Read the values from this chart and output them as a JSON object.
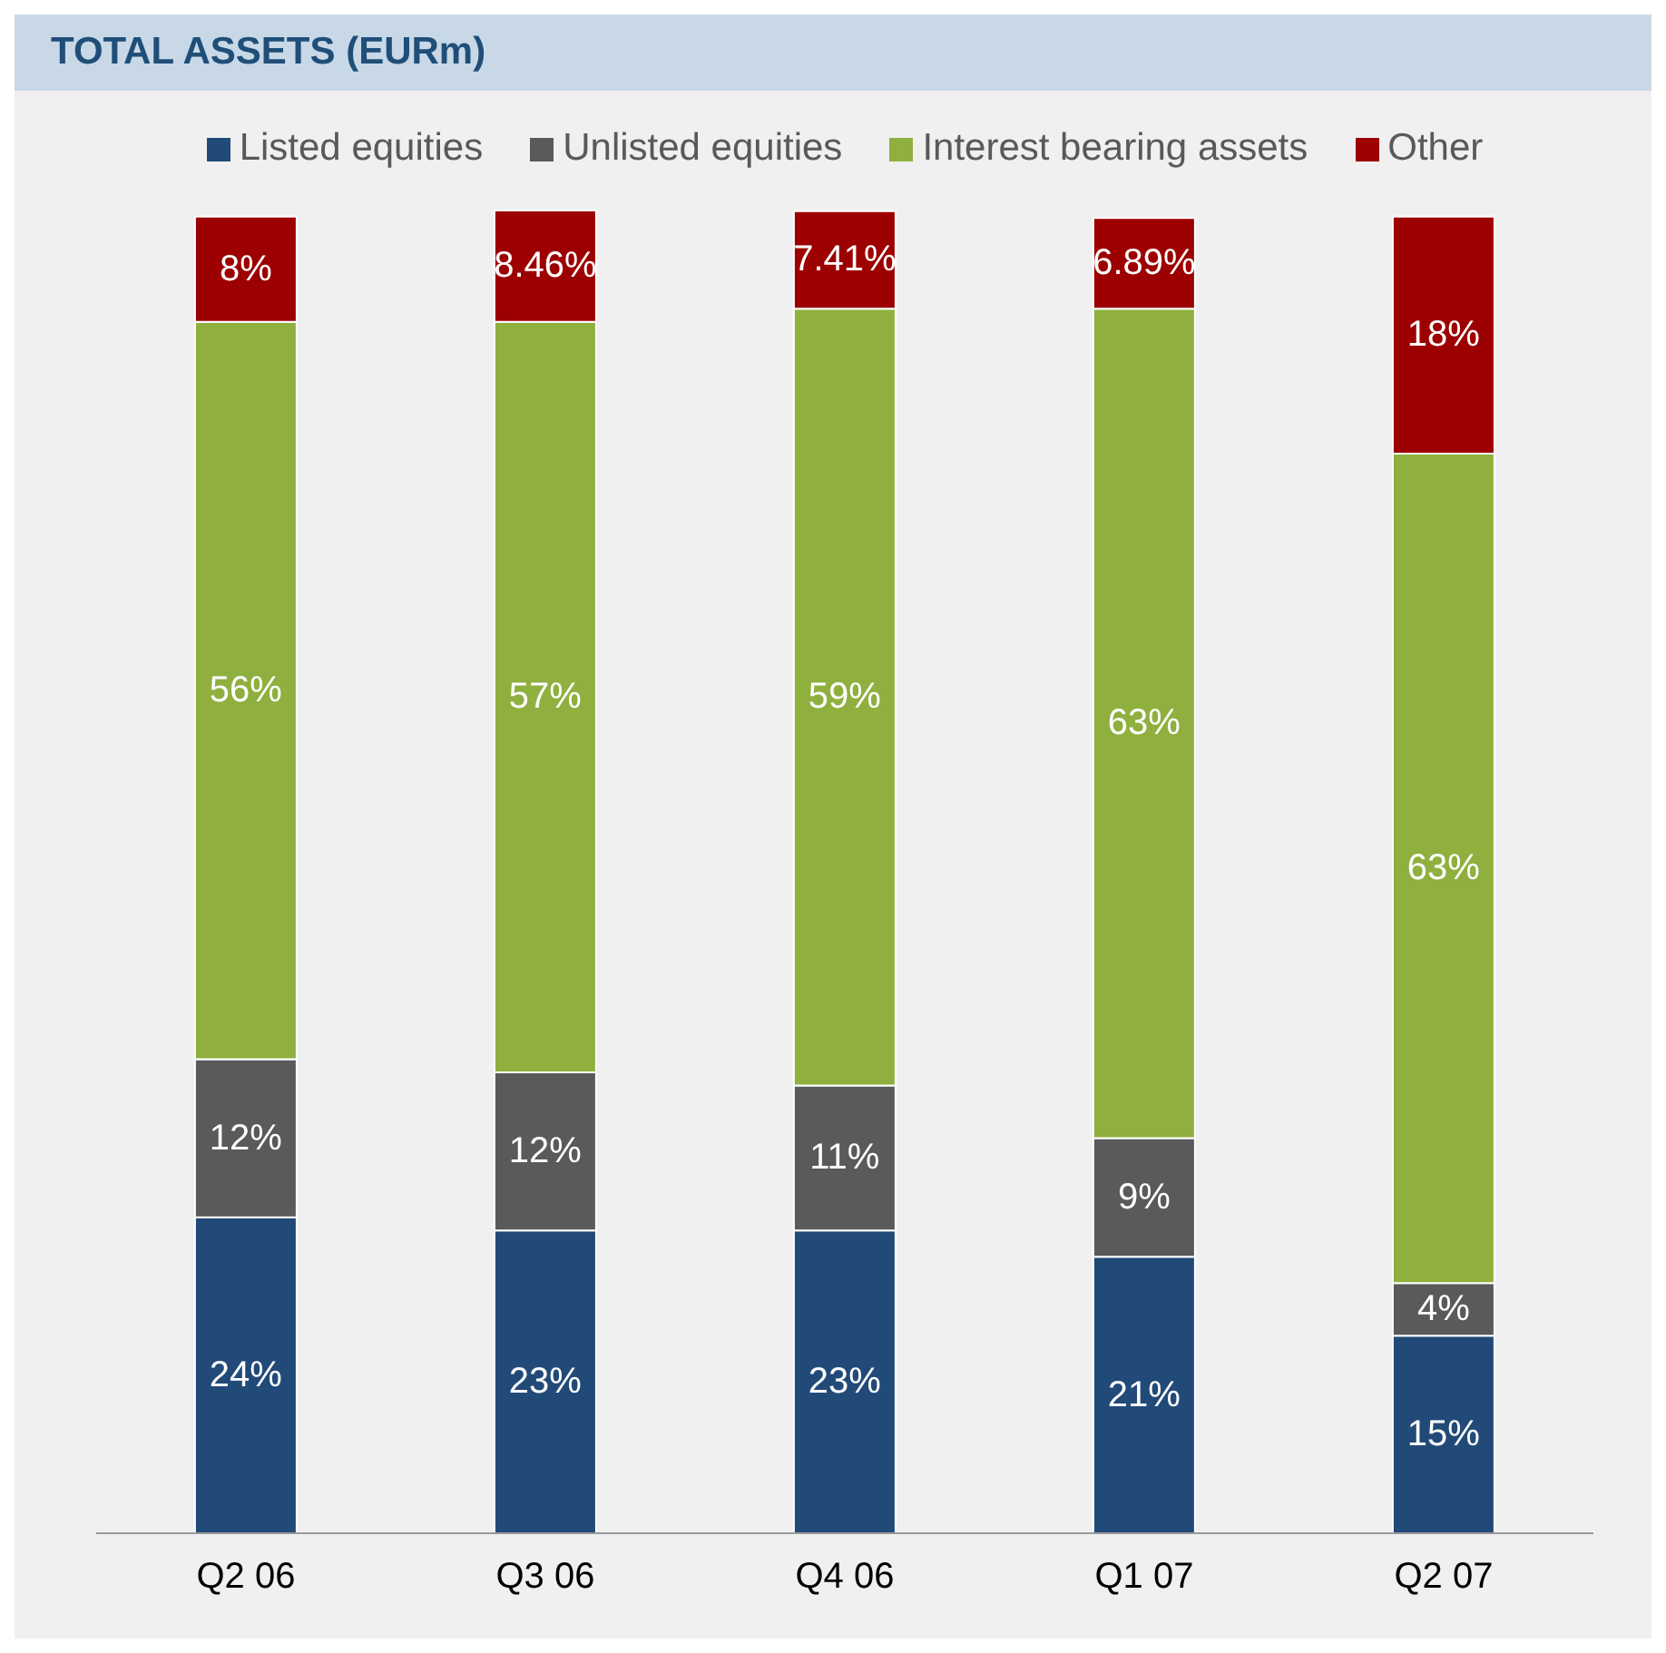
{
  "chart_data": {
    "type": "bar",
    "title": "TOTAL ASSETS (EURm)",
    "stacked": true,
    "legend": "top",
    "data_labels": true,
    "categories": [
      "Q2 06",
      "Q3 06",
      "Q4 06",
      "Q1 07",
      "Q2 07"
    ],
    "series": [
      {
        "name": "Listed equities",
        "color": "#224a78",
        "values": [
          24,
          23,
          23,
          21,
          15
        ],
        "value_labels": [
          "24%",
          "23%",
          "23%",
          "21%",
          "15%"
        ]
      },
      {
        "name": "Unlisted equities",
        "color": "#5a5a5a",
        "values": [
          12,
          12,
          11,
          9,
          4
        ],
        "value_labels": [
          "12%",
          "12%",
          "11%",
          "9%",
          "4%"
        ]
      },
      {
        "name": "Interest bearing assets",
        "color": "#8fb03f",
        "values": [
          56,
          57,
          59,
          63,
          63
        ],
        "value_labels": [
          "56%",
          "57%",
          "59%",
          "63%",
          "63%"
        ]
      },
      {
        "name": "Other",
        "color": "#9c0000",
        "values": [
          8,
          8.46,
          7.41,
          6.89,
          18
        ],
        "value_labels": [
          "8%",
          "8.46%",
          "7.41%",
          "6.89%",
          "18%"
        ]
      }
    ]
  }
}
